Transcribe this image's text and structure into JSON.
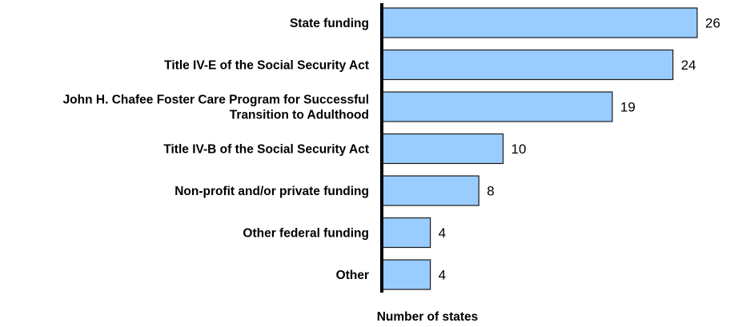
{
  "chart_data": {
    "type": "bar",
    "orientation": "horizontal",
    "categories": [
      "State funding",
      "Title IV-E of the Social Security Act",
      "John H. Chafee Foster Care Program for Successful\nTransition to Adulthood",
      "Title IV-B of the Social Security Act",
      "Non-profit and/or private funding",
      "Other federal funding",
      "Other"
    ],
    "values": [
      26,
      24,
      19,
      10,
      8,
      4,
      4
    ],
    "title": "",
    "xlabel": "Number of states",
    "ylabel": "",
    "xlim": [
      0,
      26
    ],
    "grid": false,
    "data_labels": true,
    "colors": {
      "bar_fill": "#99ccff",
      "bar_stroke": "#1a1a1a",
      "axis": "#000000"
    }
  }
}
